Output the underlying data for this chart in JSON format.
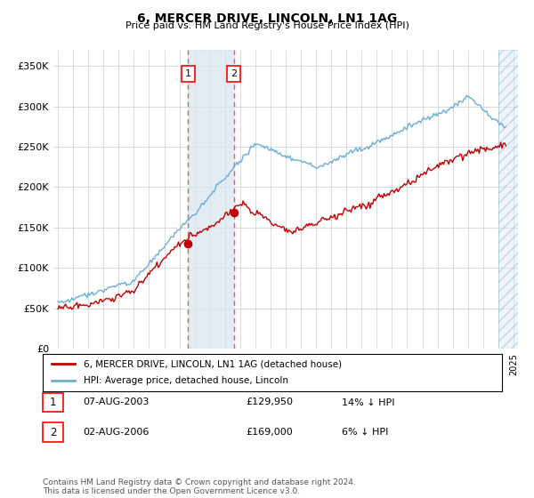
{
  "title": "6, MERCER DRIVE, LINCOLN, LN1 1AG",
  "subtitle": "Price paid vs. HM Land Registry's House Price Index (HPI)",
  "ylabel_ticks": [
    "£0",
    "£50K",
    "£100K",
    "£150K",
    "£200K",
    "£250K",
    "£300K",
    "£350K"
  ],
  "ytick_values": [
    0,
    50000,
    100000,
    150000,
    200000,
    250000,
    300000,
    350000
  ],
  "ylim": [
    0,
    370000
  ],
  "xlim_start": 1994.7,
  "xlim_end": 2025.3,
  "transaction1": {
    "date_x": 2003.58,
    "price": 129950,
    "label": "1",
    "date_str": "07-AUG-2003",
    "pct": "14%"
  },
  "transaction2": {
    "date_x": 2006.58,
    "price": 169000,
    "label": "2",
    "date_str": "02-AUG-2006",
    "pct": "6%"
  },
  "hpi_line_color": "#6baed6",
  "price_line_color": "#c00000",
  "point_color": "#c00000",
  "shaded_region_color": "#dce6f1",
  "vline_color": "#e06060",
  "legend_label_price": "6, MERCER DRIVE, LINCOLN, LN1 1AG (detached house)",
  "legend_label_hpi": "HPI: Average price, detached house, Lincoln",
  "footnote": "Contains HM Land Registry data © Crown copyright and database right 2024.\nThis data is licensed under the Open Government Licence v3.0.",
  "background_color": "#ffffff",
  "grid_color": "#cccccc"
}
